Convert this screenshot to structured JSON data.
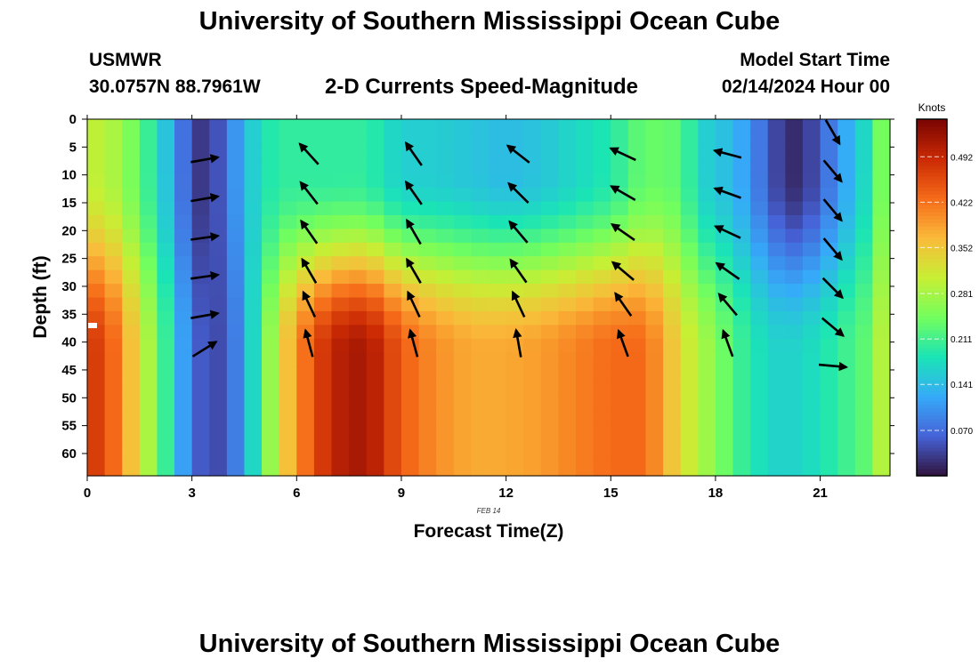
{
  "header": {
    "title": "University of Southern Mississippi Ocean Cube",
    "station": "USMWR",
    "coordinates": "30.0757N  88.7961W",
    "subtitle": "2-D Currents Speed-Magnitude",
    "start_label": "Model Start Time",
    "start_value": "02/14/2024 Hour 00"
  },
  "footer": {
    "title": "University of Southern Mississippi Ocean Cube"
  },
  "chart_data": {
    "type": "heatmap",
    "title": "2-D Currents Speed-Magnitude",
    "xlabel": "Forecast Time(Z)",
    "ylabel": "Depth (ft)",
    "date_label": "FEB 14",
    "x_ticks": [
      0,
      3,
      6,
      9,
      12,
      15,
      18,
      21
    ],
    "y_ticks": [
      0,
      5,
      10,
      15,
      20,
      25,
      30,
      35,
      40,
      45,
      50,
      55,
      60
    ],
    "xlim": [
      0,
      23
    ],
    "ylim": [
      0,
      64
    ],
    "y_inverted": true,
    "colorbar": {
      "label": "Knots",
      "min": 0.0,
      "max": 0.55,
      "ticks": [
        0.07,
        0.141,
        0.211,
        0.281,
        0.352,
        0.422,
        0.492
      ],
      "tick_labels": [
        "0.070",
        "0.141",
        "0.211",
        "0.281",
        "0.352",
        "0.422",
        "0.492"
      ],
      "colors": [
        "#30123b",
        "#4662d7",
        "#36aaf9",
        "#1ae4b6",
        "#72fe5e",
        "#c7ef34",
        "#fabb3a",
        "#f66b19",
        "#cb2a04",
        "#7a0403"
      ]
    },
    "time_speed_profile": [
      {
        "hour": 0,
        "surface": 0.3,
        "deep": 0.48
      },
      {
        "hour": 0.5,
        "surface": 0.3,
        "deep": 0.46
      },
      {
        "hour": 1,
        "surface": 0.27,
        "deep": 0.4
      },
      {
        "hour": 1.5,
        "surface": 0.23,
        "deep": 0.32
      },
      {
        "hour": 2,
        "surface": 0.18,
        "deep": 0.25
      },
      {
        "hour": 2.5,
        "surface": 0.12,
        "deep": 0.16
      },
      {
        "hour": 3,
        "surface": 0.03,
        "deep": 0.07
      },
      {
        "hour": 3.5,
        "surface": 0.03,
        "deep": 0.04
      },
      {
        "hour": 4,
        "surface": 0.07,
        "deep": 0.05
      },
      {
        "hour": 4.5,
        "surface": 0.14,
        "deep": 0.12
      },
      {
        "hour": 5,
        "surface": 0.18,
        "deep": 0.22
      },
      {
        "hour": 5.5,
        "surface": 0.2,
        "deep": 0.32
      },
      {
        "hour": 6,
        "surface": 0.2,
        "deep": 0.4
      },
      {
        "hour": 7,
        "surface": 0.2,
        "deep": 0.5
      },
      {
        "hour": 8,
        "surface": 0.2,
        "deep": 0.52
      },
      {
        "hour": 8.5,
        "surface": 0.18,
        "deep": 0.48
      },
      {
        "hour": 9,
        "surface": 0.16,
        "deep": 0.44
      },
      {
        "hour": 10,
        "surface": 0.16,
        "deep": 0.4
      },
      {
        "hour": 11,
        "surface": 0.15,
        "deep": 0.38
      },
      {
        "hour": 12,
        "surface": 0.14,
        "deep": 0.38
      },
      {
        "hour": 13,
        "surface": 0.15,
        "deep": 0.39
      },
      {
        "hour": 14,
        "surface": 0.17,
        "deep": 0.41
      },
      {
        "hour": 15,
        "surface": 0.19,
        "deep": 0.43
      },
      {
        "hour": 16,
        "surface": 0.24,
        "deep": 0.43
      },
      {
        "hour": 17,
        "surface": 0.23,
        "deep": 0.33
      },
      {
        "hour": 17.5,
        "surface": 0.17,
        "deep": 0.29
      },
      {
        "hour": 18,
        "surface": 0.15,
        "deep": 0.26
      },
      {
        "hour": 18.5,
        "surface": 0.14,
        "deep": 0.22
      },
      {
        "hour": 19,
        "surface": 0.1,
        "deep": 0.19
      },
      {
        "hour": 19.5,
        "surface": 0.06,
        "deep": 0.17
      },
      {
        "hour": 20,
        "surface": 0.02,
        "deep": 0.16
      },
      {
        "hour": 20.5,
        "surface": 0.02,
        "deep": 0.17
      },
      {
        "hour": 21,
        "surface": 0.06,
        "deep": 0.18
      },
      {
        "hour": 21.5,
        "surface": 0.1,
        "deep": 0.2
      },
      {
        "hour": 22,
        "surface": 0.15,
        "deep": 0.22
      },
      {
        "hour": 22.5,
        "surface": 0.19,
        "deep": 0.24
      },
      {
        "hour": 23,
        "surface": 0.3,
        "deep": 0.34
      }
    ],
    "vectors": [
      {
        "hour": 3,
        "depths": [
          6,
          13,
          20,
          27,
          34,
          40
        ],
        "direction_deg": [
          80,
          80,
          82,
          82,
          80,
          58
        ]
      },
      {
        "hour": 6,
        "depths": [
          5,
          12,
          19,
          26,
          32,
          39
        ],
        "direction_deg": [
          -42,
          -38,
          -35,
          -30,
          -25,
          -15
        ]
      },
      {
        "hour": 9,
        "depths": [
          5,
          12,
          19,
          26,
          32,
          39
        ],
        "direction_deg": [
          -35,
          -35,
          -30,
          -30,
          -25,
          -15
        ]
      },
      {
        "hour": 12,
        "depths": [
          5,
          12,
          19,
          26,
          32,
          39
        ],
        "direction_deg": [
          -52,
          -45,
          -40,
          -35,
          -25,
          -10
        ]
      },
      {
        "hour": 15,
        "depths": [
          5,
          12,
          19,
          26,
          32,
          39
        ],
        "direction_deg": [
          -65,
          -60,
          -55,
          -50,
          -35,
          -20
        ]
      },
      {
        "hour": 18,
        "depths": [
          5,
          12,
          19,
          26,
          32,
          39
        ],
        "direction_deg": [
          -75,
          -70,
          -65,
          -55,
          -40,
          -20
        ]
      },
      {
        "hour": 21,
        "depths": [
          1,
          8,
          15,
          22,
          29,
          36,
          43
        ],
        "direction_deg": [
          150,
          140,
          140,
          140,
          135,
          130,
          95
        ]
      }
    ]
  }
}
